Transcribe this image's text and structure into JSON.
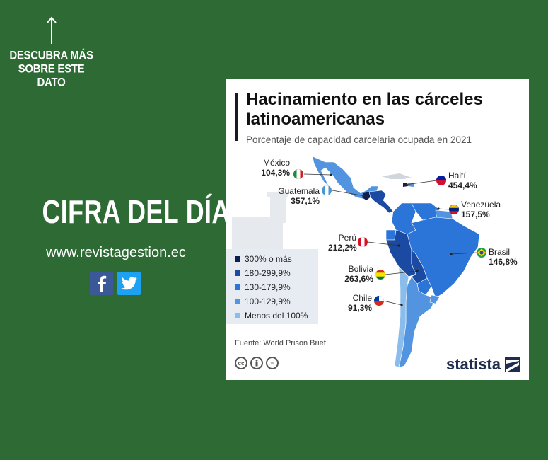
{
  "cta": {
    "text_lines": [
      "DESCUBRA MÁS",
      "SOBRE ESTE",
      "DATO"
    ]
  },
  "headline": "CIFRA DEL DÍA",
  "website": "www.revistagestion.ec",
  "social": {
    "icons": [
      "facebook-icon",
      "twitter-icon"
    ]
  },
  "colors": {
    "background": "#2e6b34",
    "c300": "#0e1e4f",
    "c180": "#1b4aa3",
    "c130": "#2b74d8",
    "c100": "#5294df",
    "c0": "#8bbdec"
  },
  "card": {
    "title": "Hacinamiento en las cárceles latinoamericanas",
    "subtitle": "Porcentaje de capacidad carcelaria ocupada en 2021",
    "countries": [
      {
        "name": "México",
        "value": "104,3%"
      },
      {
        "name": "Guatemala",
        "value": "357,1%"
      },
      {
        "name": "Haití",
        "value": "454,4%"
      },
      {
        "name": "Venezuela",
        "value": "157,5%"
      },
      {
        "name": "Perú",
        "value": "212,2%"
      },
      {
        "name": "Brasil",
        "value": "146,8%"
      },
      {
        "name": "Bolivia",
        "value": "263,6%"
      },
      {
        "name": "Chile",
        "value": "91,3%"
      }
    ],
    "legend": [
      "300% o más",
      "180-299,9%",
      "130-179,9%",
      "100-129,9%",
      "Menos del 100%"
    ],
    "source": "Fuente: World Prison Brief",
    "license_icons": [
      "cc-icon",
      "by-icon",
      "nd-icon"
    ],
    "brand": "statista"
  }
}
